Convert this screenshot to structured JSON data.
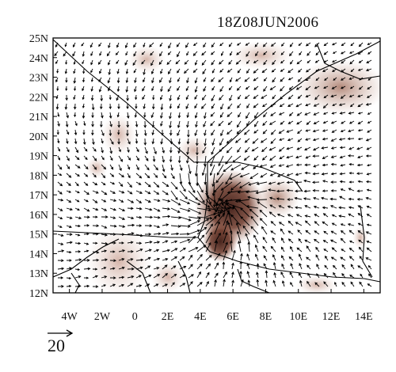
{
  "title": "18Z08JUN2006",
  "map": {
    "lon_range": [
      -5,
      15
    ],
    "lat_range": [
      12,
      25
    ],
    "lat_ticks": [
      "12N",
      "13N",
      "14N",
      "15N",
      "16N",
      "17N",
      "18N",
      "19N",
      "20N",
      "21N",
      "22N",
      "23N",
      "24N",
      "25N"
    ],
    "lon_ticks": [
      "4W",
      "2W",
      "0",
      "2E",
      "4E",
      "6E",
      "8E",
      "10E",
      "12E",
      "14E"
    ],
    "shading_color": "#b07a66",
    "shading_dark_color": "#5a2a1e",
    "arrow_color": "#000000",
    "border_color": "#000000"
  },
  "vector_scale": {
    "label": "20"
  }
}
